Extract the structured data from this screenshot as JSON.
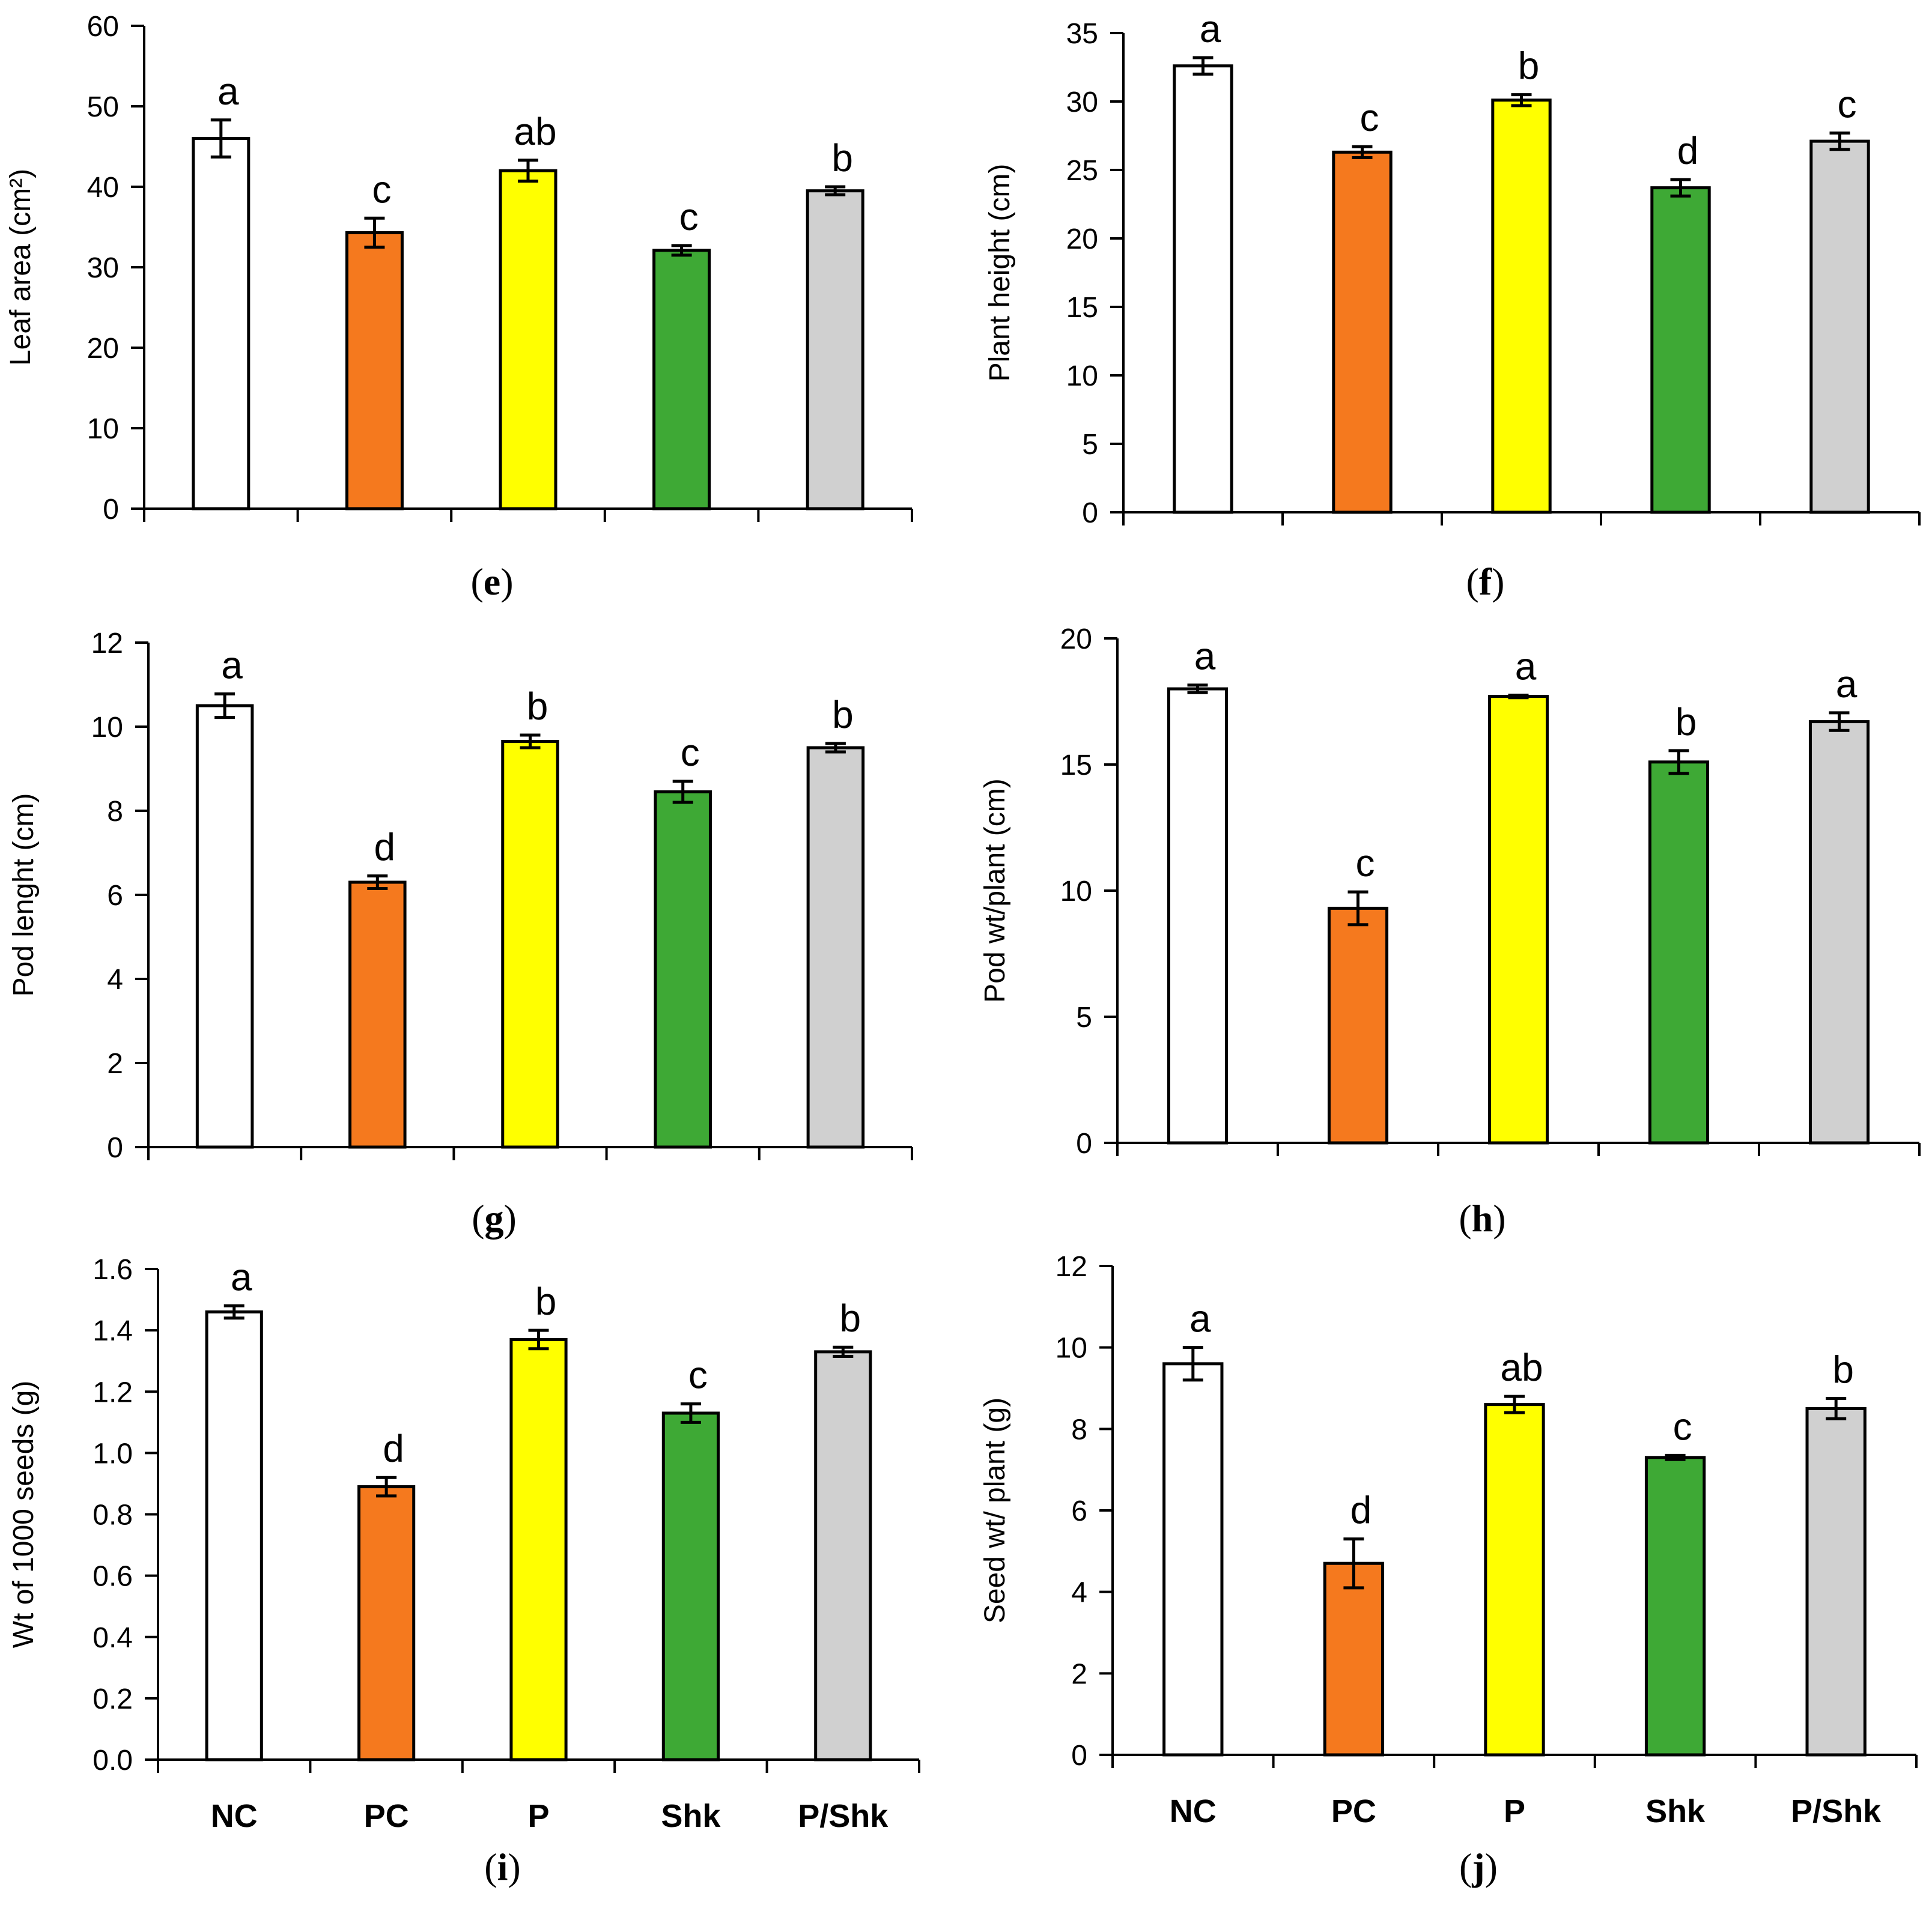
{
  "figure": {
    "categories": [
      "NC",
      "PC",
      "P",
      "Shk",
      "P/Shk"
    ],
    "colors": {
      "NC": "#ffffff",
      "PC": "#f5791e",
      "P": "#ffff00",
      "Shk": "#3ea935",
      "P/Shk": "#d0d0d0",
      "axis": "#000000"
    }
  },
  "chart_data": [
    {
      "panel": "e",
      "type": "bar",
      "title": "",
      "xlabel": "",
      "ylabel": "Leaf area (cm²)",
      "categories": [
        "NC",
        "PC",
        "P",
        "Shk",
        "P/Shk"
      ],
      "values": [
        46.0,
        34.3,
        42.0,
        32.1,
        39.5
      ],
      "errors": [
        2.3,
        1.8,
        1.3,
        0.6,
        0.5
      ],
      "labels": [
        "a",
        "c",
        "ab",
        "c",
        "b"
      ],
      "ylim": [
        0,
        60
      ],
      "yticks": [
        0,
        10,
        20,
        30,
        40,
        50,
        60
      ],
      "decimals": 0,
      "show_categories": false,
      "grid": false,
      "legend": "none"
    },
    {
      "panel": "f",
      "type": "bar",
      "title": "",
      "xlabel": "",
      "ylabel": "Plant height (cm)",
      "categories": [
        "NC",
        "PC",
        "P",
        "Shk",
        "P/Shk"
      ],
      "values": [
        32.6,
        26.3,
        30.1,
        23.7,
        27.1
      ],
      "errors": [
        0.6,
        0.4,
        0.4,
        0.6,
        0.6
      ],
      "labels": [
        "a",
        "c",
        "b",
        "d",
        "c"
      ],
      "ylim": [
        0,
        35
      ],
      "yticks": [
        0,
        5,
        10,
        15,
        20,
        25,
        30,
        35
      ],
      "decimals": 0,
      "show_categories": false,
      "grid": false,
      "legend": "none"
    },
    {
      "panel": "g",
      "type": "bar",
      "title": "",
      "xlabel": "",
      "ylabel": "Pod lenght (cm)",
      "categories": [
        "NC",
        "PC",
        "P",
        "Shk",
        "P/Shk"
      ],
      "values": [
        10.5,
        6.3,
        9.65,
        8.45,
        9.5
      ],
      "errors": [
        0.28,
        0.15,
        0.15,
        0.25,
        0.1
      ],
      "labels": [
        "a",
        "d",
        "b",
        "c",
        "b"
      ],
      "ylim": [
        0,
        12
      ],
      "yticks": [
        0,
        2,
        4,
        6,
        8,
        10,
        12
      ],
      "decimals": 0,
      "show_categories": false,
      "grid": false,
      "legend": "none"
    },
    {
      "panel": "h",
      "type": "bar",
      "title": "",
      "xlabel": "",
      "ylabel": "Pod wt/plant (cm)",
      "categories": [
        "NC",
        "PC",
        "P",
        "Shk",
        "P/Shk"
      ],
      "values": [
        18.0,
        9.3,
        17.7,
        15.1,
        16.7
      ],
      "errors": [
        0.15,
        0.65,
        0.05,
        0.45,
        0.35
      ],
      "labels": [
        "a",
        "c",
        "a",
        "b",
        "a"
      ],
      "ylim": [
        0,
        20
      ],
      "yticks": [
        0,
        5,
        10,
        15,
        20
      ],
      "decimals": 0,
      "show_categories": false,
      "grid": false,
      "legend": "none"
    },
    {
      "panel": "i",
      "type": "bar",
      "title": "",
      "xlabel": "",
      "ylabel": "Wt of 1000 seeds (g)",
      "categories": [
        "NC",
        "PC",
        "P",
        "Shk",
        "P/Shk"
      ],
      "values": [
        1.46,
        0.89,
        1.37,
        1.13,
        1.33
      ],
      "errors": [
        0.02,
        0.03,
        0.03,
        0.03,
        0.015
      ],
      "labels": [
        "a",
        "d",
        "b",
        "c",
        "b"
      ],
      "ylim": [
        0,
        1.6
      ],
      "yticks": [
        0,
        0.2,
        0.4,
        0.6,
        0.8,
        1.0,
        1.2,
        1.4,
        1.6
      ],
      "decimals": 1,
      "show_categories": true,
      "grid": false,
      "legend": "none"
    },
    {
      "panel": "j",
      "type": "bar",
      "title": "",
      "xlabel": "",
      "ylabel": "Seed wt/ plant (g)",
      "categories": [
        "NC",
        "PC",
        "P",
        "Shk",
        "P/Shk"
      ],
      "values": [
        9.6,
        4.7,
        8.6,
        7.3,
        8.5
      ],
      "errors": [
        0.4,
        0.6,
        0.2,
        0.05,
        0.25
      ],
      "labels": [
        "a",
        "d",
        "ab",
        "c",
        "b"
      ],
      "ylim": [
        0,
        12
      ],
      "yticks": [
        0,
        2,
        4,
        6,
        8,
        10,
        12
      ],
      "decimals": 0,
      "show_categories": true,
      "grid": false,
      "legend": "none"
    }
  ]
}
